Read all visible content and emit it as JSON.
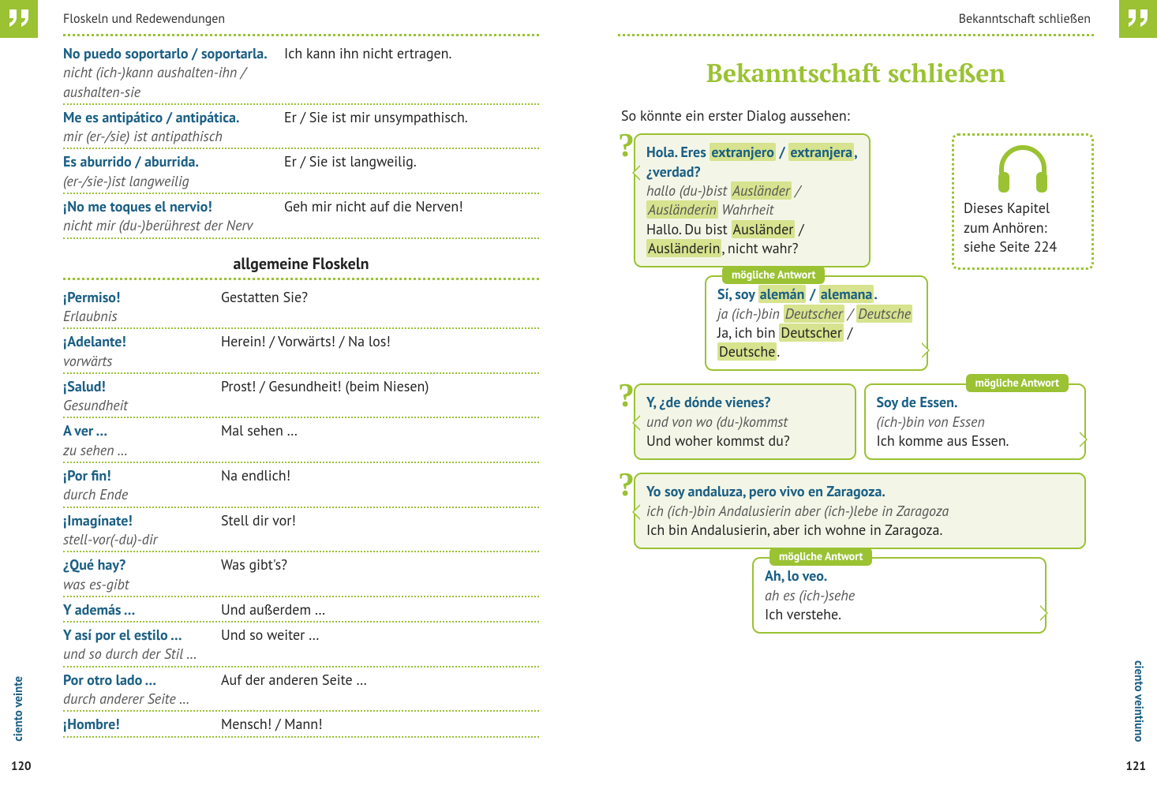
{
  "left": {
    "header": "Floskeln und Redewendungen",
    "rows1": [
      {
        "es": "No puedo soportarlo / soportarla.",
        "lit": "nicht (ich-)kann aushalten-ihn / aushalten-sie",
        "de": "Ich kann ihn nicht ertragen."
      },
      {
        "es": "Me es antipático / antipática.",
        "lit": "mir (er-/sie) ist antipathisch",
        "de": "Er / Sie ist mir unsympa­thisch."
      },
      {
        "es": "Es aburrido / aburrida.",
        "lit": "(er-/sie-)ist langweilig",
        "de": "Er / Sie ist langweilig."
      },
      {
        "es": "¡No me toques el nervio!",
        "lit": "nicht mir (du-)berührest der Nerv",
        "de": "Geh mir nicht auf die Nerven!"
      }
    ],
    "subhead": "allgemeine Floskeln",
    "rows2": [
      {
        "es": "¡Permiso!",
        "lit": "Erlaubnis",
        "de": "Gestatten Sie?"
      },
      {
        "es": "¡Adelante!",
        "lit": "vorwärts",
        "de": "Herein! / Vorwärts! / Na los!"
      },
      {
        "es": "¡Salud!",
        "lit": "Gesundheit",
        "de": "Prost! / Gesundheit! (beim Niesen)"
      },
      {
        "es": "A ver …",
        "lit": "zu sehen …",
        "de": "Mal sehen …"
      },
      {
        "es": "¡Por fin!",
        "lit": "durch Ende",
        "de": "Na endlich!"
      },
      {
        "es": "¡Imagínate!",
        "lit": "stell-vor(-du)-dir",
        "de": "Stell dir vor!"
      },
      {
        "es": "¿Qué hay?",
        "lit": "was es-gibt",
        "de": "Was gibt's?"
      },
      {
        "es": "Y además …",
        "lit": "",
        "de": "Und außerdem …"
      },
      {
        "es": "Y así por el estilo …",
        "lit": "und so durch der Stil …",
        "de": "Und so weiter …"
      },
      {
        "es": "Por otro lado …",
        "lit": "durch anderer Seite …",
        "de": "Auf der anderen Seite …"
      },
      {
        "es": "¡Hombre!",
        "lit": "",
        "de": "Mensch! / Mann!"
      }
    ],
    "pagenum": "120",
    "pageword": "ciento veinte"
  },
  "right": {
    "header": "Bekanntschaft schließen",
    "title": "Bekanntschaft schließen",
    "intro": "So könnte ein erster Dialog aussehen:",
    "audio": {
      "l1": "Dieses Kapitel",
      "l2": "zum Anhören:",
      "l3": "siehe Seite 224"
    },
    "ans_label": "mögliche Antwort",
    "d1": {
      "q_es_pre": "Hola. Eres ",
      "q_es_hl1": "extranjero",
      "q_es_mid": " / ",
      "q_es_hl2": "extranjera",
      "q_es_post": ", ¿verdad?",
      "q_lit_pre": "hallo (du-)bist ",
      "q_lit_hl1": "Ausländer",
      "q_lit_mid": " / ",
      "q_lit_hl2": "Ausländerin",
      "q_lit_post": " Wahrheit",
      "q_de_pre": "Hallo. Du bist ",
      "q_de_hl1": "Ausländer",
      "q_de_mid": " / ",
      "q_de_hl2": "Ausländerin",
      "q_de_post": ", nicht wahr?",
      "a_es_pre": "Sí, soy ",
      "a_es_hl1": "alemán",
      "a_es_mid": " / ",
      "a_es_hl2": "alemana",
      "a_es_post": ".",
      "a_lit_pre": "ja (ich-)bin ",
      "a_lit_hl1": "Deutscher",
      "a_lit_mid": " / ",
      "a_lit_hl2": "Deutsche",
      "a_de_pre": "Ja, ich bin ",
      "a_de_hl1": "Deutscher",
      "a_de_mid": " / ",
      "a_de_hl2": "Deutsche",
      "a_de_post": "."
    },
    "d2": {
      "q_es": "Y, ¿de dónde vienes?",
      "q_lit": "und von wo (du-)kommst",
      "q_de": "Und woher kommst du?",
      "a_es": "Soy de Essen.",
      "a_lit": "(ich-)bin von Essen",
      "a_de": "Ich komme aus Essen."
    },
    "d3": {
      "q_es": "Yo soy andaluza, pero vivo en Zaragoza.",
      "q_lit": "ich (ich-)bin Andalusierin aber (ich-)lebe in Zaragoza",
      "q_de": "Ich bin Andalusierin, aber ich wohne in Zaragoza.",
      "a_es": "Ah, lo veo.",
      "a_lit": "ah es (ich-)sehe",
      "a_de": "Ich verstehe."
    },
    "pagenum": "121",
    "pageword": "ciento veintiuno"
  },
  "colors": {
    "accent": "#9ac233",
    "es_text": "#1b5f84",
    "highlight": "#d7e38e",
    "bubble_bg": "#f3f6e7"
  }
}
